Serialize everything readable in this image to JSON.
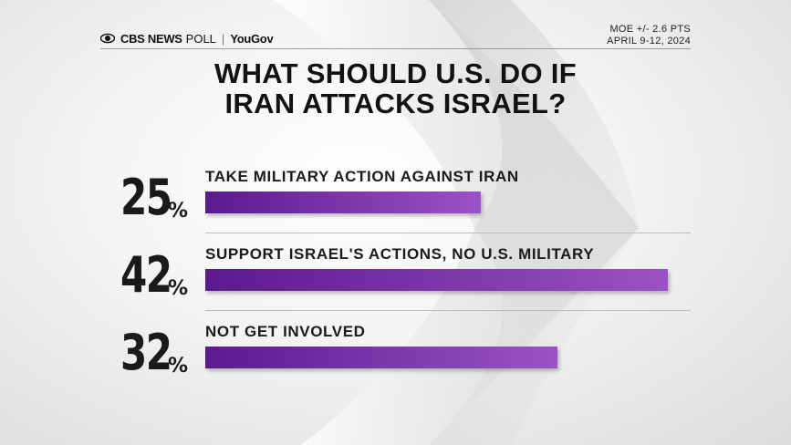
{
  "brand": {
    "cbs": "CBS NEWS",
    "poll": "POLL",
    "separator": "|",
    "yougov": "YouGov"
  },
  "meta": {
    "moe": "MOE +/- 2.6 PTS",
    "dates": "APRIL 9-12, 2024"
  },
  "title_line1": "WHAT SHOULD U.S. DO IF",
  "title_line2": "IRAN ATTACKS ISRAEL?",
  "colors": {
    "bar_start": "#5b1a8e",
    "bar_end": "#9b52c6"
  },
  "chart_data": {
    "type": "bar",
    "orientation": "horizontal",
    "title": "WHAT SHOULD U.S. DO IF IRAN ATTACKS ISRAEL?",
    "categories": [
      "TAKE MILITARY ACTION AGAINST IRAN",
      "SUPPORT ISRAEL'S ACTIONS, NO U.S. MILITARY",
      "NOT GET INVOLVED"
    ],
    "values": [
      25,
      42,
      32
    ],
    "value_labels": [
      "25",
      "42",
      "32"
    ],
    "unit": "%",
    "xlim": [
      0,
      42
    ]
  }
}
